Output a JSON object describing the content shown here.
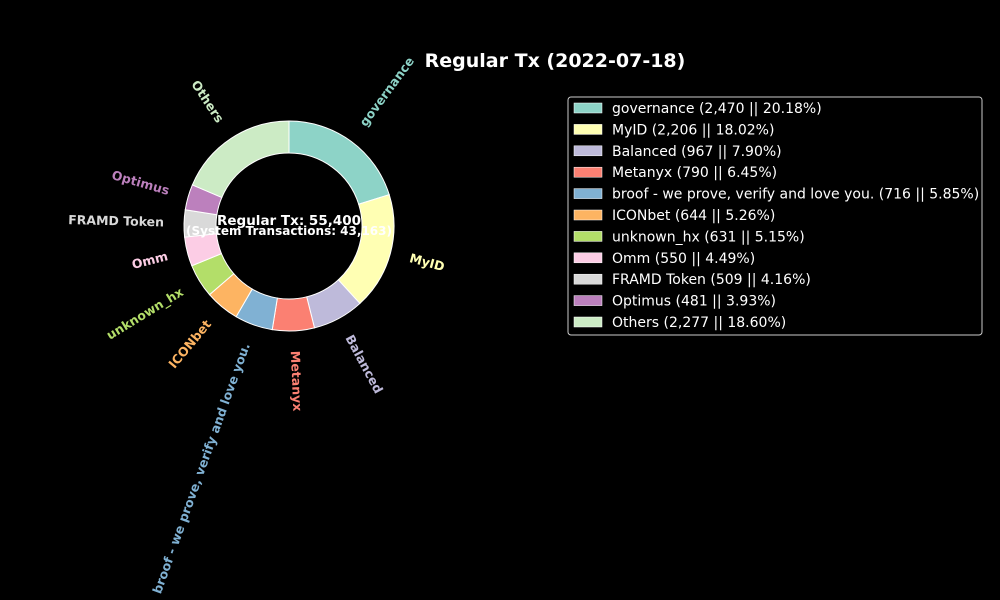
{
  "chart_data": {
    "type": "pie",
    "style": "donut",
    "title": "Regular Tx (2022-07-18)",
    "center_text": {
      "line1": "Regular Tx: 55,400",
      "line2": "(System Transactions: 43,163)"
    },
    "legend_position": "right",
    "slices": [
      {
        "label": "governance",
        "value": 2470,
        "percent": 20.18,
        "color": "#8dd3c7",
        "legend": "governance (2,470 || 20.18%)"
      },
      {
        "label": "MyID",
        "value": 2206,
        "percent": 18.02,
        "color": "#ffffb3",
        "legend": "MyID (2,206 || 18.02%)"
      },
      {
        "label": "Balanced",
        "value": 967,
        "percent": 7.9,
        "color": "#bebada",
        "legend": "Balanced (967 || 7.90%)"
      },
      {
        "label": "Metanyx",
        "value": 790,
        "percent": 6.45,
        "color": "#fb8072",
        "legend": "Metanyx (790 || 6.45%)"
      },
      {
        "label": "broof - we prove, verify and love you.",
        "value": 716,
        "percent": 5.85,
        "color": "#80b1d3",
        "legend": "broof - we prove, verify and love you. (716 || 5.85%)"
      },
      {
        "label": "ICONbet",
        "value": 644,
        "percent": 5.26,
        "color": "#fdb462",
        "legend": "ICONbet (644 || 5.26%)"
      },
      {
        "label": "unknown_hx",
        "value": 631,
        "percent": 5.15,
        "color": "#b3de69",
        "legend": "unknown_hx (631 || 5.15%)"
      },
      {
        "label": "Omm",
        "value": 550,
        "percent": 4.49,
        "color": "#fccde5",
        "legend": "Omm (550 || 4.49%)"
      },
      {
        "label": "FRAMD Token",
        "value": 509,
        "percent": 4.16,
        "color": "#d9d9d9",
        "legend": "FRAMD Token (509 || 4.16%)"
      },
      {
        "label": "Optimus",
        "value": 481,
        "percent": 3.93,
        "color": "#bc80bd",
        "legend": "Optimus (481 || 3.93%)"
      },
      {
        "label": "Others",
        "value": 2277,
        "percent": 18.6,
        "color": "#ccebc5",
        "legend": "Others (2,277 || 18.60%)"
      }
    ]
  }
}
